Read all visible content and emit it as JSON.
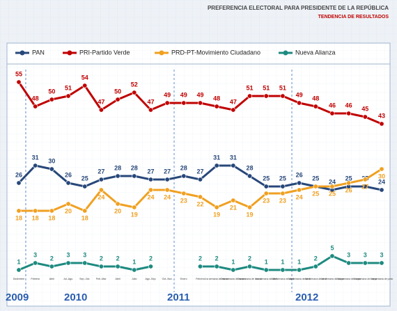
{
  "header": {
    "title": "PREFERENCIA ELECTORAL PARA PRESIDENTE DE LA REPÚBLICA",
    "subtitle": "TENDENCIA DE RESULTADOS"
  },
  "chart_data": {
    "type": "line",
    "categories": [
      "Diciembre",
      "Febrero",
      "Abril",
      "Jul.-Ago.",
      "Sep.-Oct.",
      "Feb.-Mar.",
      "Abril",
      "Julio",
      "Ago.-Sep.",
      "Oct.-Nov.",
      "Enero",
      "Febrero",
      "1ra semana de marzo",
      "2da semana de marzo",
      "3ra semana de marzo",
      "1ra semana de abril",
      "2da semana de abril",
      "3ra semana de abril",
      "4ta semana de abril",
      "1ra semana de mayo",
      "2da semana de mayo",
      "3ra semana de mayo",
      "1ra semana de junio"
    ],
    "years": [
      "2009",
      "2010",
      "2011",
      "2012"
    ],
    "ylim": [
      0,
      60
    ],
    "series": [
      {
        "name": "PAN",
        "color": "#27477a",
        "values": [
          26,
          31,
          30,
          26,
          25,
          27,
          28,
          28,
          27,
          27,
          28,
          27,
          31,
          31,
          28,
          25,
          25,
          26,
          25,
          24,
          25,
          25,
          24
        ]
      },
      {
        "name": "PRI-Partido Verde",
        "color": "#c00000",
        "values": [
          55,
          48,
          50,
          51,
          54,
          47,
          50,
          52,
          47,
          49,
          49,
          49,
          48,
          47,
          51,
          51,
          51,
          49,
          48,
          46,
          46,
          45,
          43
        ]
      },
      {
        "name": "PRD-PT-Movimiento Ciudadano",
        "color": "#f0a020",
        "values": [
          18,
          18,
          18,
          20,
          18,
          24,
          20,
          19,
          24,
          24,
          23,
          22,
          19,
          21,
          19,
          23,
          23,
          24,
          25,
          25,
          26,
          27,
          30
        ]
      },
      {
        "name": "Nueva Alianza",
        "color": "#1d8a80",
        "values": [
          1,
          3,
          2,
          3,
          3,
          2,
          2,
          1,
          2,
          null,
          null,
          2,
          2,
          1,
          2,
          1,
          1,
          1,
          2,
          5,
          3,
          3,
          3
        ]
      }
    ]
  }
}
